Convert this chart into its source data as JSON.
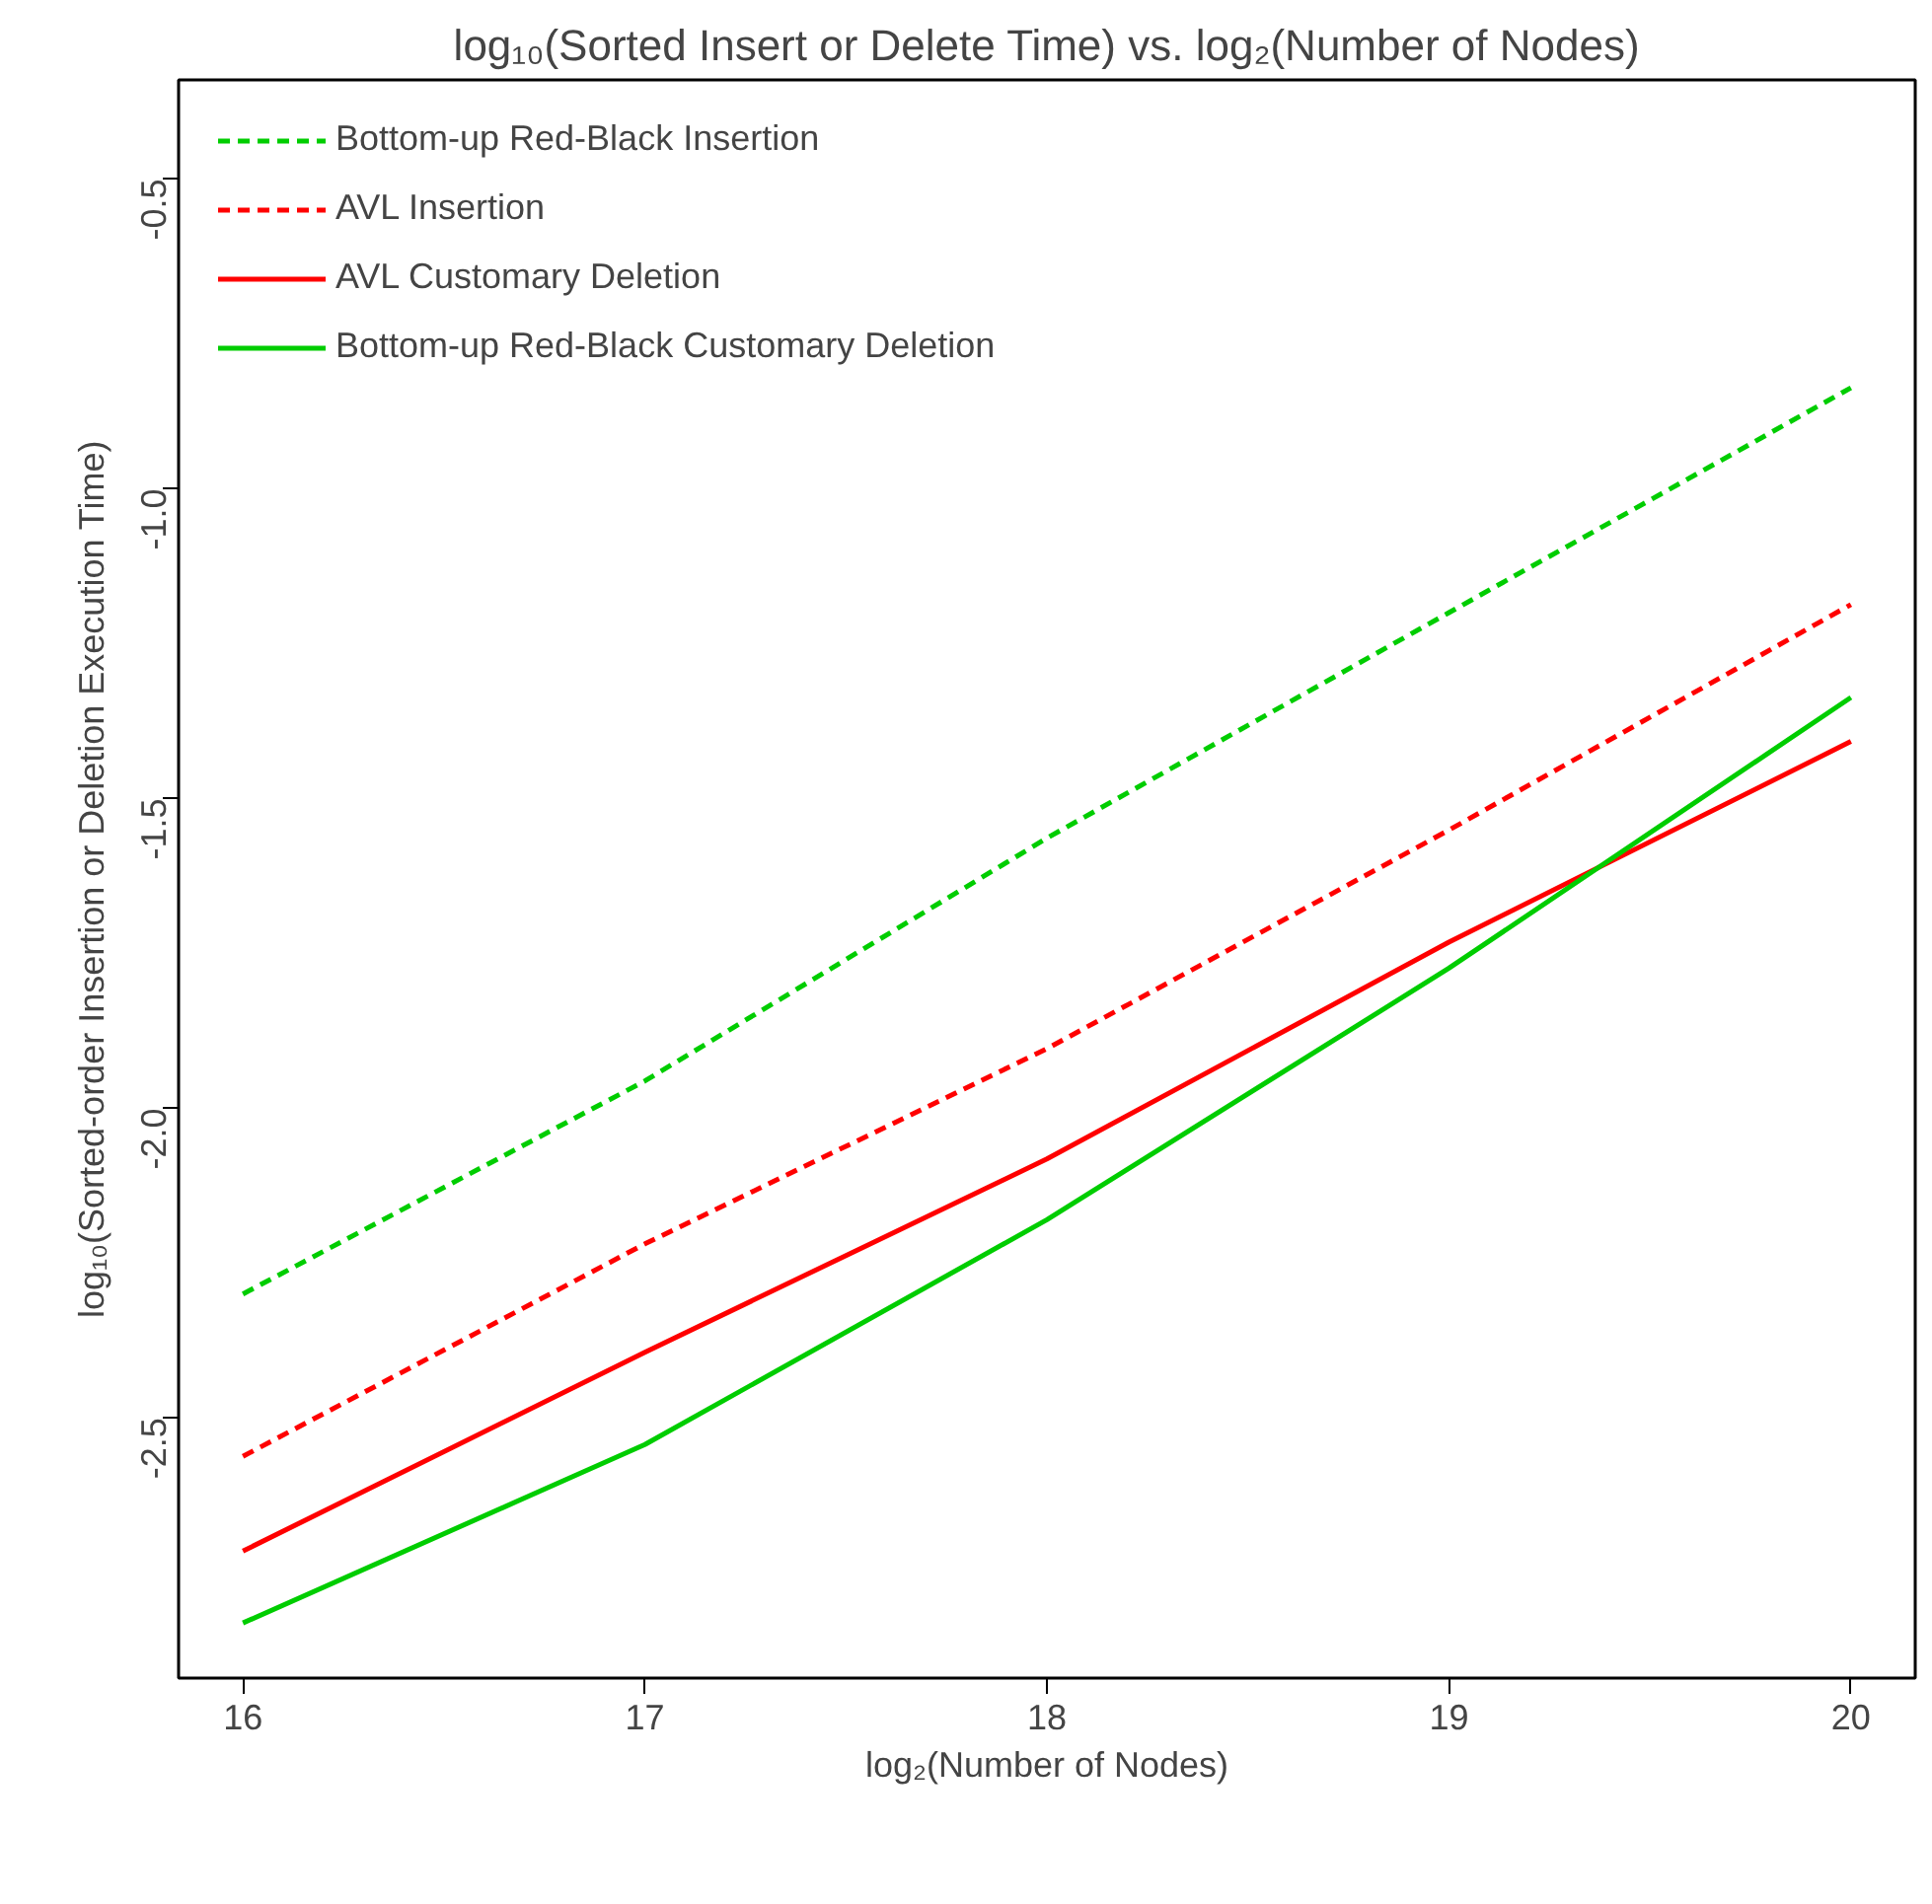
{
  "chart_data": {
    "type": "line",
    "title": "log₁₀(Sorted Insert or Delete Time) vs. log₂(Number of Nodes)",
    "xlabel": "log₂(Number of Nodes)",
    "ylabel": "log₁₀(Sorted-order Insertion or Deletion Execution Time)",
    "x": [
      16,
      17,
      18,
      19,
      20
    ],
    "xlim": [
      15.84,
      20.16
    ],
    "xticks": [
      16,
      17,
      18,
      19,
      20
    ],
    "ylim": [
      -2.92,
      -0.34
    ],
    "yticks": [
      {
        "value": -2.5,
        "label": "-2.5"
      },
      {
        "value": -2.0,
        "label": "-2.0"
      },
      {
        "value": -1.5,
        "label": "-1.5"
      },
      {
        "value": -1.0,
        "label": "-1.0"
      },
      {
        "value": -0.5,
        "label": "-0.5"
      }
    ],
    "grid": false,
    "legend": "top left",
    "marker": "none",
    "series": [
      {
        "name": "Bottom-up Red-Black Insertion",
        "color": "#00cd00",
        "line_style": "dashed",
        "values": [
          -2.3,
          -1.956,
          -1.564,
          -1.2,
          -0.837
        ]
      },
      {
        "name": "AVL Insertion",
        "color": "#ff0000",
        "line_style": "dashed",
        "values": [
          -2.562,
          -2.219,
          -1.904,
          -1.551,
          -1.187
        ]
      },
      {
        "name": "AVL Customary Deletion",
        "color": "#ff0000",
        "line_style": "solid",
        "values": [
          -2.715,
          -2.394,
          -2.082,
          -1.732,
          -1.408
        ]
      },
      {
        "name": "Bottom-up Red-Black Customary Deletion",
        "color": "#00cd00",
        "line_style": "solid",
        "values": [
          -2.831,
          -2.543,
          -2.18,
          -1.774,
          -1.337
        ]
      }
    ]
  }
}
